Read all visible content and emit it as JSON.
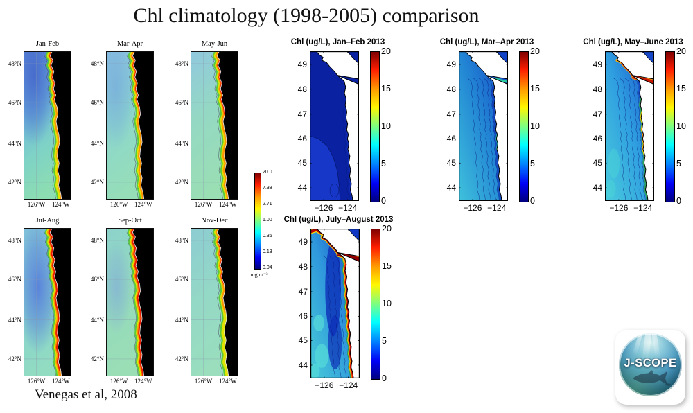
{
  "slide": {
    "title": "Chl climatology (1998-2005) comparison",
    "citation": "Venegas et al, 2008",
    "background": "#FFFFFF"
  },
  "logo": {
    "text": "J-SCOPE"
  },
  "climatology": {
    "subplots": [
      {
        "label": "Jan-Feb"
      },
      {
        "label": "Mar-Apr"
      },
      {
        "label": "May-Jun"
      },
      {
        "label": "Jul-Aug"
      },
      {
        "label": "Sep-Oct"
      },
      {
        "label": "Nov-Dec"
      }
    ],
    "lat_ticks": [
      "48°N",
      "46°N",
      "44°N",
      "42°N"
    ],
    "lon_ticks": [
      "126°W",
      "124°W"
    ],
    "colorbar": {
      "tick_labels": [
        "20.0",
        "7.38",
        "2.71",
        "1.00",
        "0.36",
        "0.13",
        "0.04"
      ],
      "unit": "mg m⁻³"
    }
  },
  "model": {
    "subplots": [
      {
        "title": "Chl (ug/L), Jan–Feb 2013"
      },
      {
        "title": "Chl (ug/L), Mar–Apr 2013"
      },
      {
        "title": "Chl (ug/L), May–June 2013"
      },
      {
        "title": "Chl (ug/L), July–August 2013"
      }
    ],
    "lat_ticks": [
      "49",
      "48",
      "47",
      "46",
      "45",
      "44"
    ],
    "lon_ticks": [
      "−126",
      "−124"
    ],
    "colorbar": {
      "tick_labels": [
        "20",
        "15",
        "10",
        "5",
        "0"
      ]
    }
  },
  "chart_data": {
    "type": "heatmap",
    "title": "Chl climatology (1998-2005) comparison",
    "layout": "2x3 grid of satellite climatology maps (left, shared log colorbar) vs 4 model maps for 2013 (right, linear 0-20 colorbars)",
    "subplots": [
      {
        "panel": "climatology",
        "title": "Jan-Feb",
        "x": "longitude 126°W-124°W",
        "y": "latitude 42°N-48°N",
        "pattern": "offshore 0.1-0.5 mg m⁻³ (blue), coastal band 2-20 mg m⁻³ (yellow-red), strongest orange-red 46.5-48.5°N"
      },
      {
        "panel": "climatology",
        "title": "Mar-Apr",
        "pattern": "offshore 0.3-1 (cyan), full-length orange coastal band, red patches near 46°N and 47.5-48.5°N"
      },
      {
        "panel": "climatology",
        "title": "May-Jun",
        "pattern": "similar to Mar-Apr: green mid-shelf, orange-red coastal band, cyan offshore"
      },
      {
        "panel": "climatology",
        "title": "Jul-Aug",
        "pattern": "low-chl blue pool offshore 46-47.5°N, wide red band 7-20 along the entire coast"
      },
      {
        "panel": "climatology",
        "title": "Sep-Oct",
        "pattern": "green-cyan offshore, broad red coastal band along entire coast"
      },
      {
        "panel": "climatology",
        "title": "Nov-Dec",
        "pattern": "cyan-green offshore, orange-red band mainly 46-48°N, yellow-green farther south"
      },
      {
        "panel": "model",
        "title": "Chl (ug/L), Jan–Feb 2013",
        "x": "longitude −127 to −123.5",
        "y": "latitude 43.5-49.5",
        "pattern": "uniformly low 0-2 ug/L (dark blue), slightly higher south of 45°N"
      },
      {
        "panel": "model",
        "title": "Chl (ug/L), Mar–Apr 2013",
        "pattern": "2-5 ug/L offshore southwest (light blue-cyan), lower nearshore north, small 5-8 patch at coast near 46.3°N and in eastern Strait of Juan de Fuca"
      },
      {
        "panel": "model",
        "title": "Chl (ug/L), May–June 2013",
        "pattern": "5-15 ug/L coastal band 44-48°N with yellow-orange maxima near 46°N, up to 20 (red) in Strait of Juan de Fuca"
      },
      {
        "panel": "model",
        "title": "Chl (ug/L), July–August 2013",
        "pattern": "dark-red 20 ug/L band along entire coast and strait, 2-5 offshore, darker blue mid-domain tongue, cyan southwest"
      }
    ],
    "climatology_colorbar": {
      "scale": "log",
      "ticks": [
        20.0,
        7.38,
        2.71,
        1.0,
        0.36,
        0.13,
        0.04
      ],
      "unit": "mg m⁻³"
    },
    "model_colorbar": {
      "scale": "linear",
      "range": [
        0,
        20
      ],
      "ticks": [
        0,
        5,
        10,
        15,
        20
      ],
      "unit": "ug/L"
    }
  }
}
